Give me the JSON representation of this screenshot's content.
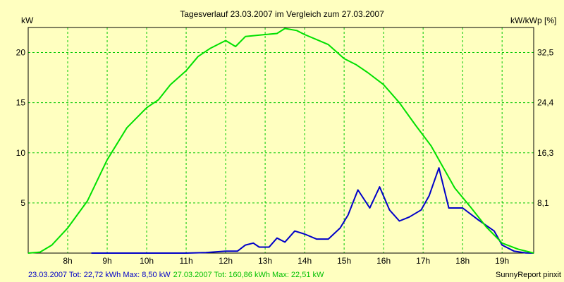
{
  "chart_data": {
    "type": "line",
    "title": "Tagesverlauf 23.03.2007 im Vergleich zum 27.03.2007",
    "ylabel_left": "kW",
    "ylabel_right": "kW/kWp [%]",
    "xlim": [
      7,
      19.8
    ],
    "ylim": [
      0,
      22.5
    ],
    "x_ticks": [
      {
        "v": 8,
        "label": "8h"
      },
      {
        "v": 9,
        "label": "9h"
      },
      {
        "v": 10,
        "label": "10h"
      },
      {
        "v": 11,
        "label": "11h"
      },
      {
        "v": 12,
        "label": "12h"
      },
      {
        "v": 13,
        "label": "13h"
      },
      {
        "v": 14,
        "label": "14h"
      },
      {
        "v": 15,
        "label": "15h"
      },
      {
        "v": 16,
        "label": "16h"
      },
      {
        "v": 17,
        "label": "17h"
      },
      {
        "v": 18,
        "label": "18h"
      },
      {
        "v": 19,
        "label": "19h"
      }
    ],
    "y_ticks": [
      {
        "v": 5,
        "label": "5"
      },
      {
        "v": 10,
        "label": "10"
      },
      {
        "v": 15,
        "label": "15"
      },
      {
        "v": 20,
        "label": "20"
      }
    ],
    "y_right_ticks": [
      {
        "v": 5,
        "label": "8,1"
      },
      {
        "v": 10,
        "label": "16,3"
      },
      {
        "v": 15,
        "label": "24,4"
      },
      {
        "v": 20,
        "label": "32,5"
      }
    ],
    "grid": true,
    "series": [
      {
        "name": "23.03.2007",
        "color": "#0000c8",
        "points": [
          [
            8.6,
            0.0
          ],
          [
            11.0,
            0.0
          ],
          [
            11.5,
            0.05
          ],
          [
            12.0,
            0.2
          ],
          [
            12.3,
            0.2
          ],
          [
            12.5,
            0.8
          ],
          [
            12.7,
            1.0
          ],
          [
            12.85,
            0.6
          ],
          [
            13.1,
            0.6
          ],
          [
            13.3,
            1.5
          ],
          [
            13.5,
            1.1
          ],
          [
            13.75,
            2.2
          ],
          [
            14.0,
            1.9
          ],
          [
            14.3,
            1.4
          ],
          [
            14.6,
            1.4
          ],
          [
            14.9,
            2.5
          ],
          [
            15.1,
            3.8
          ],
          [
            15.35,
            6.3
          ],
          [
            15.65,
            4.5
          ],
          [
            15.9,
            6.6
          ],
          [
            16.15,
            4.3
          ],
          [
            16.4,
            3.2
          ],
          [
            16.65,
            3.6
          ],
          [
            16.95,
            4.3
          ],
          [
            17.15,
            5.7
          ],
          [
            17.4,
            8.5
          ],
          [
            17.65,
            4.5
          ],
          [
            18.0,
            4.5
          ],
          [
            18.4,
            3.3
          ],
          [
            18.8,
            2.2
          ],
          [
            19.0,
            0.8
          ],
          [
            19.3,
            0.2
          ],
          [
            19.6,
            0.02
          ],
          [
            19.8,
            0.0
          ]
        ]
      },
      {
        "name": "27.03.2007",
        "color": "#00e000",
        "points": [
          [
            7.0,
            0.0
          ],
          [
            7.3,
            0.1
          ],
          [
            7.6,
            0.8
          ],
          [
            8.0,
            2.5
          ],
          [
            8.5,
            5.2
          ],
          [
            9.0,
            9.3
          ],
          [
            9.5,
            12.5
          ],
          [
            10.0,
            14.5
          ],
          [
            10.3,
            15.3
          ],
          [
            10.6,
            16.8
          ],
          [
            11.0,
            18.2
          ],
          [
            11.3,
            19.6
          ],
          [
            11.6,
            20.4
          ],
          [
            12.0,
            21.2
          ],
          [
            12.25,
            20.6
          ],
          [
            12.5,
            21.6
          ],
          [
            13.0,
            21.8
          ],
          [
            13.3,
            21.9
          ],
          [
            13.5,
            22.4
          ],
          [
            13.8,
            22.2
          ],
          [
            14.0,
            21.8
          ],
          [
            14.3,
            21.3
          ],
          [
            14.6,
            20.8
          ],
          [
            15.0,
            19.4
          ],
          [
            15.3,
            18.8
          ],
          [
            15.6,
            18.0
          ],
          [
            16.0,
            16.8
          ],
          [
            16.4,
            15.0
          ],
          [
            16.8,
            12.8
          ],
          [
            17.2,
            10.7
          ],
          [
            17.5,
            8.6
          ],
          [
            17.8,
            6.5
          ],
          [
            18.2,
            4.6
          ],
          [
            18.6,
            2.6
          ],
          [
            19.0,
            1.0
          ],
          [
            19.4,
            0.4
          ],
          [
            19.8,
            0.0
          ]
        ]
      }
    ]
  },
  "footer": {
    "series1_text": "23.03.2007 Tot: 22,72 kWh Max: 8,50 kW",
    "series2_text": "27.03.2007 Tot: 160,86 kWh Max: 22,51 kW",
    "credit": "SunnyReport pinxit"
  },
  "colors": {
    "background": "#ffffc0",
    "grid": "#00c800",
    "axes": "#000000"
  }
}
